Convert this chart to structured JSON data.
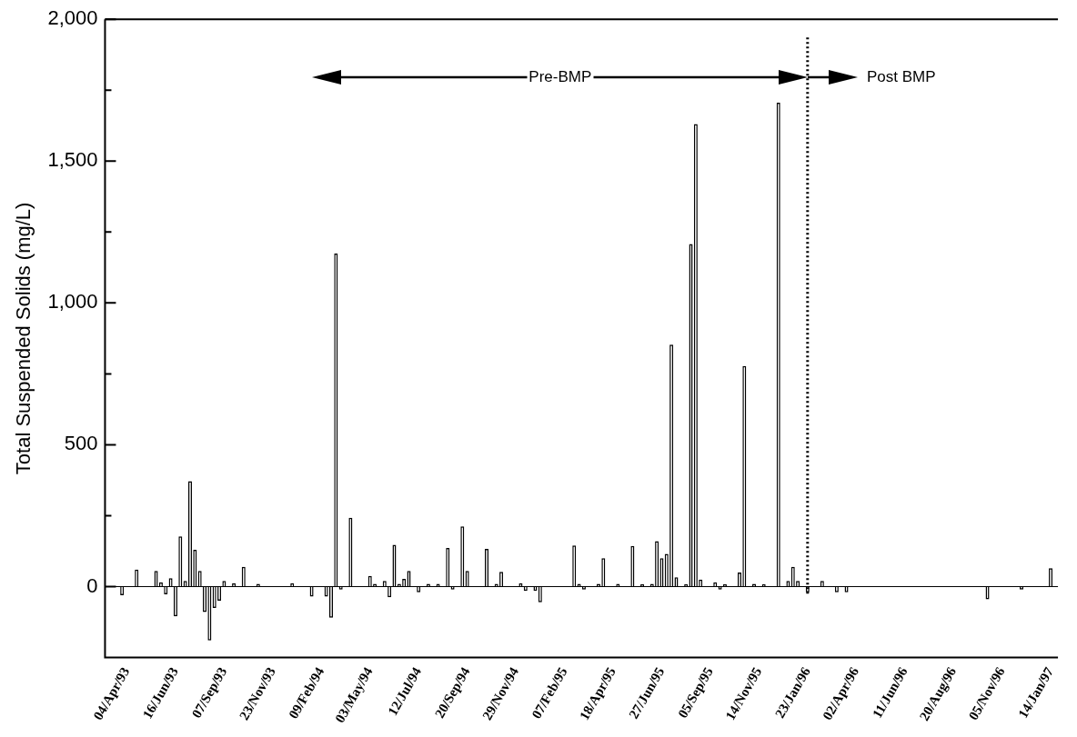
{
  "chart_data": {
    "type": "bar",
    "ylabel": "Total Suspended Solids (mg/L)",
    "color": "#ffffff",
    "categories": [
      null,
      null,
      null,
      null,
      "04/Apr/93",
      null,
      null,
      null,
      null,
      null,
      null,
      null,
      null,
      null,
      "16/Jun/93",
      null,
      null,
      null,
      null,
      null,
      null,
      null,
      null,
      null,
      "07/Sep/93",
      null,
      null,
      null,
      null,
      null,
      null,
      null,
      null,
      null,
      "23/Nov/93",
      null,
      null,
      null,
      null,
      null,
      null,
      null,
      null,
      null,
      "09/Feb/94",
      null,
      null,
      null,
      null,
      null,
      null,
      null,
      null,
      null,
      "03/May/94",
      null,
      null,
      null,
      null,
      null,
      null,
      null,
      null,
      null,
      "12/Jul/94",
      null,
      null,
      null,
      null,
      null,
      null,
      null,
      null,
      null,
      "20/Sep/94",
      null,
      null,
      null,
      null,
      null,
      null,
      null,
      null,
      null,
      "29/Nov/94",
      null,
      null,
      null,
      null,
      null,
      null,
      null,
      null,
      null,
      "07/Feb/95",
      null,
      null,
      null,
      null,
      null,
      null,
      null,
      null,
      null,
      "18/Apr/95",
      null,
      null,
      null,
      null,
      null,
      null,
      null,
      null,
      null,
      "27/Jun/95",
      null,
      null,
      null,
      null,
      null,
      null,
      null,
      null,
      null,
      "05/Sep/95",
      null,
      null,
      null,
      null,
      null,
      null,
      null,
      null,
      null,
      "14/Nov/95",
      null,
      null,
      null,
      null,
      null,
      null,
      null,
      null,
      null,
      "23/Jan/96",
      null,
      null,
      null,
      null,
      null,
      null,
      null,
      null,
      null,
      "02/Apr/96",
      null,
      null,
      null,
      null,
      null,
      null,
      null,
      null,
      null,
      "11/Jun/96",
      null,
      null,
      null,
      null,
      null,
      null,
      null,
      null,
      null,
      "20/Aug/96",
      null,
      null,
      null,
      null,
      null,
      null,
      null,
      null,
      null,
      "05/Nov/96",
      null,
      null,
      null,
      null,
      null,
      null,
      null,
      null,
      null,
      "14/Jan/97",
      null
    ],
    "values": [
      0,
      0,
      0,
      -30,
      0,
      0,
      60,
      0,
      0,
      0,
      55,
      15,
      -27,
      30,
      -105,
      177,
      20,
      372,
      130,
      55,
      -90,
      -190,
      -75,
      -50,
      20,
      0,
      12,
      0,
      70,
      0,
      0,
      10,
      0,
      0,
      0,
      0,
      0,
      0,
      12,
      0,
      0,
      0,
      -35,
      0,
      0,
      -35,
      -110,
      1174,
      -10,
      0,
      243,
      0,
      0,
      0,
      38,
      10,
      0,
      20,
      -38,
      147,
      10,
      27,
      55,
      0,
      -20,
      0,
      10,
      0,
      10,
      0,
      136,
      -10,
      0,
      212,
      55,
      0,
      0,
      0,
      133,
      0,
      10,
      52,
      0,
      0,
      0,
      12,
      -15,
      0,
      -15,
      -55,
      0,
      0,
      0,
      0,
      0,
      0,
      145,
      10,
      -10,
      0,
      0,
      10,
      100,
      0,
      0,
      10,
      0,
      0,
      143,
      0,
      8,
      0,
      10,
      160,
      100,
      115,
      853,
      33,
      0,
      8,
      1208,
      1631,
      25,
      0,
      0,
      15,
      -10,
      8,
      0,
      0,
      50,
      778,
      0,
      10,
      0,
      8,
      0,
      0,
      1706,
      0,
      20,
      70,
      20,
      0,
      -20,
      0,
      0,
      20,
      0,
      0,
      -20,
      0,
      -20,
      0,
      0,
      0,
      0,
      0,
      0,
      0,
      0,
      0,
      0,
      0,
      0,
      0,
      0,
      0,
      0,
      0,
      0,
      0,
      0,
      0,
      0,
      0,
      0,
      0,
      0,
      0,
      0,
      -45,
      0,
      0,
      0,
      0,
      0,
      0,
      -10,
      0,
      0,
      0,
      0,
      0,
      65,
      0
    ],
    "ylim": [
      -250,
      2000
    ],
    "yticks": [
      0,
      {
        "value": 250,
        "label": null
      },
      500,
      {
        "value": 750,
        "label": null
      },
      {
        "value": 1000,
        "label": "1,000"
      },
      {
        "value": 1250,
        "label": null
      },
      {
        "value": 1500,
        "label": "1,500"
      },
      {
        "value": 1750,
        "label": null
      },
      {
        "value": 2000,
        "label": "2,000"
      }
    ],
    "ref_lines": [
      {
        "axis": "x",
        "value": "23/Jan/96",
        "line_style": "dotted",
        "color": "#000000"
      }
    ],
    "annotations": [
      "Pre-BMP",
      "Post BMP"
    ]
  }
}
